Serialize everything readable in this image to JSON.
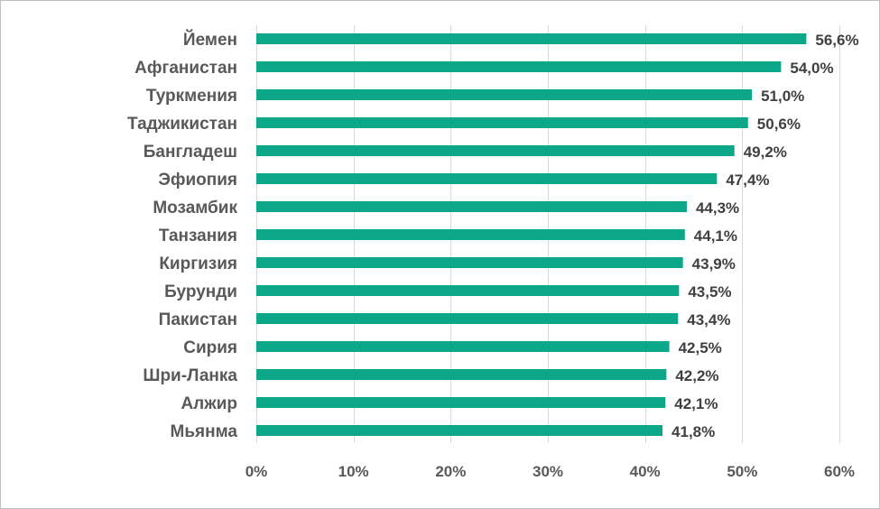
{
  "chart_data": {
    "type": "bar",
    "orientation": "horizontal",
    "categories": [
      "Йемен",
      "Афганистан",
      "Туркмения",
      "Таджикистан",
      "Бангладеш",
      "Эфиопия",
      "Мозамбик",
      "Танзания",
      "Киргизия",
      "Бурунди",
      "Пакистан",
      "Сирия",
      "Шри-Ланка",
      "Алжир",
      "Мьянма"
    ],
    "values": [
      56.6,
      54.0,
      51.0,
      50.6,
      49.2,
      47.4,
      44.3,
      44.1,
      43.9,
      43.5,
      43.4,
      42.5,
      42.2,
      42.1,
      41.8
    ],
    "value_labels": [
      "56,6%",
      "54,0%",
      "51,0%",
      "50,6%",
      "49,2%",
      "47,4%",
      "44,3%",
      "44,1%",
      "43,9%",
      "43,5%",
      "43,4%",
      "42,5%",
      "42,2%",
      "42,1%",
      "41,8%"
    ],
    "xlim": [
      0,
      60
    ],
    "x_ticks": [
      0,
      10,
      20,
      30,
      40,
      50,
      60
    ],
    "x_tick_labels": [
      "0%",
      "10%",
      "20%",
      "30%",
      "40%",
      "50%",
      "60%"
    ],
    "title": "",
    "xlabel": "",
    "ylabel": "",
    "grid": "vertical",
    "legend": "none",
    "bar_color": "#0ca788"
  }
}
